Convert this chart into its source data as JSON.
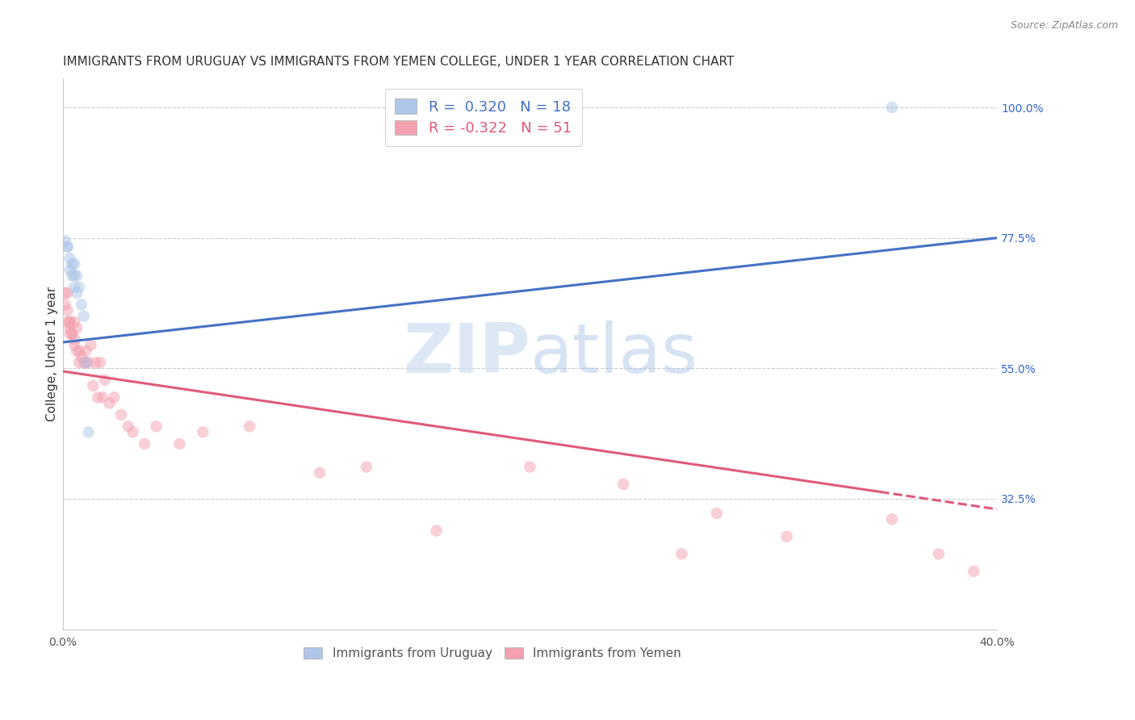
{
  "title": "IMMIGRANTS FROM URUGUAY VS IMMIGRANTS FROM YEMEN COLLEGE, UNDER 1 YEAR CORRELATION CHART",
  "source": "Source: ZipAtlas.com",
  "ylabel": "College, Under 1 year",
  "xlim": [
    0.0,
    0.4
  ],
  "ylim": [
    0.1,
    1.05
  ],
  "xtick_positions": [
    0.0,
    0.05,
    0.1,
    0.15,
    0.2,
    0.25,
    0.3,
    0.35,
    0.4
  ],
  "xticklabels": [
    "0.0%",
    "",
    "",
    "",
    "",
    "",
    "",
    "",
    "40.0%"
  ],
  "yticks_right": [
    1.0,
    0.775,
    0.55,
    0.325
  ],
  "yticklabels_right": [
    "100.0%",
    "77.5%",
    "55.0%",
    "32.5%"
  ],
  "grid_color": "#cccccc",
  "background_color": "#ffffff",
  "uruguay_color": "#aec6e8",
  "yemen_color": "#f4a0b0",
  "uruguay_line_color": "#4472c4",
  "yemen_line_color": "#e05a7a",
  "legend_R_uruguay": "R =  0.320",
  "legend_N_uruguay": "N = 18",
  "legend_R_yemen": "R = -0.322",
  "legend_N_yemen": "N = 51",
  "uruguay_line": {
    "x0": 0.0,
    "y0": 0.595,
    "x1": 0.4,
    "y1": 0.775
  },
  "yemen_line_solid": {
    "x0": 0.0,
    "y0": 0.545,
    "x1": 0.35,
    "y1": 0.337
  },
  "yemen_line_dash": {
    "x0": 0.35,
    "y0": 0.337,
    "x1": 0.4,
    "y1": 0.307
  },
  "uruguay_x": [
    0.002,
    0.003,
    0.003,
    0.004,
    0.004,
    0.005,
    0.005,
    0.005,
    0.006,
    0.006,
    0.007,
    0.008,
    0.009,
    0.01,
    0.011,
    0.355,
    0.001,
    0.002
  ],
  "uruguay_y": [
    0.76,
    0.74,
    0.72,
    0.73,
    0.71,
    0.73,
    0.71,
    0.69,
    0.71,
    0.68,
    0.69,
    0.66,
    0.64,
    0.56,
    0.44,
    1.0,
    0.77,
    0.76
  ],
  "yemen_x": [
    0.001,
    0.001,
    0.002,
    0.002,
    0.002,
    0.003,
    0.003,
    0.003,
    0.003,
    0.004,
    0.004,
    0.005,
    0.005,
    0.005,
    0.006,
    0.006,
    0.007,
    0.007,
    0.008,
    0.009,
    0.01,
    0.01,
    0.011,
    0.012,
    0.013,
    0.014,
    0.015,
    0.016,
    0.017,
    0.018,
    0.02,
    0.022,
    0.025,
    0.028,
    0.03,
    0.035,
    0.04,
    0.05,
    0.06,
    0.08,
    0.11,
    0.13,
    0.16,
    0.2,
    0.24,
    0.265,
    0.28,
    0.31,
    0.355,
    0.375,
    0.39
  ],
  "yemen_y": [
    0.68,
    0.66,
    0.68,
    0.65,
    0.63,
    0.63,
    0.63,
    0.61,
    0.62,
    0.61,
    0.61,
    0.59,
    0.63,
    0.6,
    0.62,
    0.58,
    0.58,
    0.56,
    0.57,
    0.56,
    0.56,
    0.58,
    0.56,
    0.59,
    0.52,
    0.56,
    0.5,
    0.56,
    0.5,
    0.53,
    0.49,
    0.5,
    0.47,
    0.45,
    0.44,
    0.42,
    0.45,
    0.42,
    0.44,
    0.45,
    0.37,
    0.38,
    0.27,
    0.38,
    0.35,
    0.23,
    0.3,
    0.26,
    0.29,
    0.23,
    0.2
  ],
  "title_fontsize": 11,
  "label_fontsize": 11,
  "tick_fontsize": 10,
  "marker_size": 110,
  "marker_alpha": 0.5,
  "line_width": 2.2
}
